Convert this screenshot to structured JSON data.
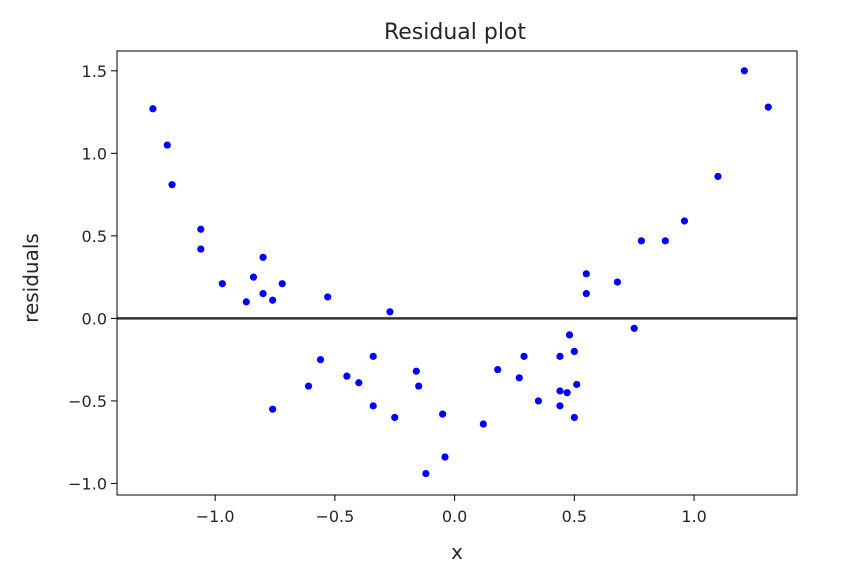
{
  "chart_data": {
    "type": "scatter",
    "title": "Residual plot",
    "xlabel": "x",
    "ylabel": "residuals",
    "xlim": [
      -1.41,
      1.43
    ],
    "ylim": [
      -1.07,
      1.62
    ],
    "x_ticks": [
      -1.0,
      -0.5,
      0.0,
      0.5,
      1.0
    ],
    "x_tick_labels": [
      "−1.0",
      "−0.5",
      "0.0",
      "0.5",
      "1.0"
    ],
    "y_ticks": [
      -1.0,
      -0.5,
      0.0,
      0.5,
      1.0,
      1.5
    ],
    "y_tick_labels": [
      "−1.0",
      "−0.5",
      "0.0",
      "0.5",
      "1.0",
      "1.5"
    ],
    "grid": false,
    "reference_line": {
      "y": 0,
      "color": "#333333"
    },
    "marker_color": "#0000ff",
    "points": [
      [
        -1.26,
        1.27
      ],
      [
        -1.2,
        1.05
      ],
      [
        -1.18,
        0.81
      ],
      [
        -1.06,
        0.54
      ],
      [
        -1.06,
        0.42
      ],
      [
        -0.97,
        0.21
      ],
      [
        -0.84,
        0.25
      ],
      [
        -0.8,
        0.37
      ],
      [
        -0.8,
        0.15
      ],
      [
        -0.87,
        0.1
      ],
      [
        -0.76,
        0.11
      ],
      [
        -0.72,
        0.21
      ],
      [
        -0.53,
        0.13
      ],
      [
        -0.76,
        -0.55
      ],
      [
        -0.61,
        -0.41
      ],
      [
        -0.56,
        -0.25
      ],
      [
        -0.45,
        -0.35
      ],
      [
        -0.4,
        -0.39
      ],
      [
        -0.34,
        -0.23
      ],
      [
        -0.34,
        -0.53
      ],
      [
        -0.27,
        0.04
      ],
      [
        -0.25,
        -0.6
      ],
      [
        -0.16,
        -0.32
      ],
      [
        -0.15,
        -0.41
      ],
      [
        -0.12,
        -0.94
      ],
      [
        -0.05,
        -0.58
      ],
      [
        -0.04,
        -0.84
      ],
      [
        0.12,
        -0.64
      ],
      [
        0.18,
        -0.31
      ],
      [
        0.27,
        -0.36
      ],
      [
        0.29,
        -0.23
      ],
      [
        0.35,
        -0.5
      ],
      [
        0.44,
        -0.23
      ],
      [
        0.44,
        -0.44
      ],
      [
        0.44,
        -0.53
      ],
      [
        0.47,
        -0.45
      ],
      [
        0.48,
        -0.1
      ],
      [
        0.5,
        -0.2
      ],
      [
        0.5,
        -0.6
      ],
      [
        0.51,
        -0.4
      ],
      [
        0.55,
        0.27
      ],
      [
        0.55,
        0.15
      ],
      [
        0.68,
        0.22
      ],
      [
        0.75,
        -0.06
      ],
      [
        0.78,
        0.47
      ],
      [
        0.88,
        0.47
      ],
      [
        0.96,
        0.59
      ],
      [
        1.1,
        0.86
      ],
      [
        1.21,
        1.5
      ],
      [
        1.31,
        1.28
      ]
    ]
  }
}
